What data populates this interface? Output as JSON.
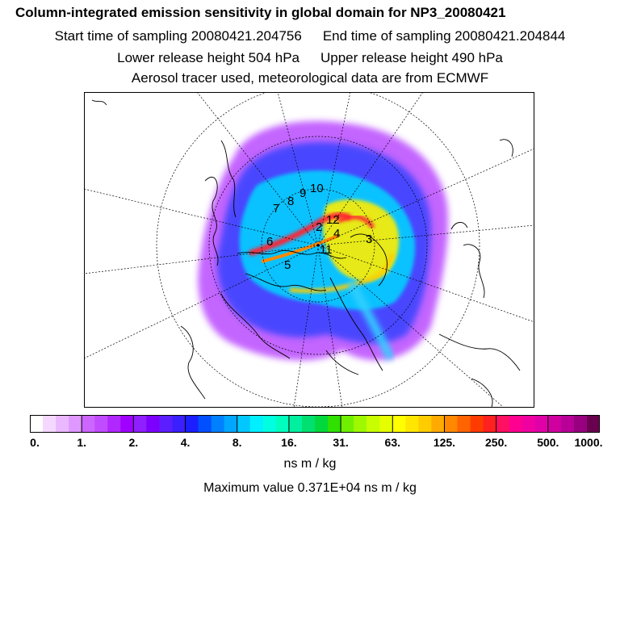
{
  "header": {
    "title": "Column-integrated emission sensitivity in global domain for NP3_20080421",
    "start_time": "Start time of sampling 20080421.204756",
    "end_time": "End time of sampling 20080421.204844",
    "lower_release": "Lower release height  504 hPa",
    "upper_release": "Upper release height  490 hPa",
    "tracer_note": "Aerosol tracer used, meteorological data are from ECMWF"
  },
  "map": {
    "projection": "polar-stereographic",
    "day_labels": [
      {
        "label": "2"
      },
      {
        "label": "3"
      },
      {
        "label": "4"
      },
      {
        "label": "5"
      },
      {
        "label": "6"
      },
      {
        "label": "7"
      },
      {
        "label": "8"
      },
      {
        "label": "9"
      },
      {
        "label": "10"
      },
      {
        "label": "11"
      },
      {
        "label": "12"
      }
    ]
  },
  "colorbar": {
    "colors": [
      "#ffffff",
      "#f5d8ff",
      "#eab8ff",
      "#de98ff",
      "#cc66ff",
      "#c14cff",
      "#b128ff",
      "#9f00ff",
      "#8f1fff",
      "#7d00ff",
      "#5b1fff",
      "#3a1fff",
      "#1b1fff",
      "#0050ff",
      "#0080ff",
      "#00a6ff",
      "#00c8ff",
      "#00f0ff",
      "#00ffe0",
      "#00ffbe",
      "#00f0a0",
      "#00e070",
      "#00d83c",
      "#30e000",
      "#70f000",
      "#a0f800",
      "#c8ff00",
      "#e6ff00",
      "#ffff00",
      "#ffe600",
      "#ffcc00",
      "#ffaa00",
      "#ff8800",
      "#ff6400",
      "#ff3c00",
      "#ff2020",
      "#ff1060",
      "#ff0090",
      "#f000a0",
      "#e000a8",
      "#d000a0",
      "#b80098",
      "#980080",
      "#6a0050"
    ],
    "tick_labels": [
      "0.",
      "1.",
      "2.",
      "4.",
      "8.",
      "16.",
      "31.",
      "63.",
      "125.",
      "250.",
      "500.",
      "1000."
    ],
    "units": "ns m / kg",
    "max_value": "Maximum value  0.371E+04 ns m / kg"
  }
}
